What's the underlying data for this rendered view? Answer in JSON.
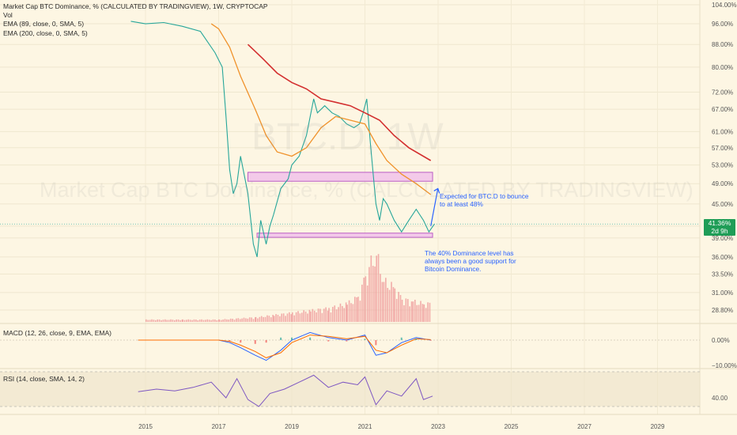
{
  "legend": {
    "title": "Market Cap BTC Dominance, % (CALCULATED BY TRADINGVIEW), 1W, CRYPTOCAP",
    "vol": "Vol",
    "ema89": "EMA (89, close, 0, SMA, 5)",
    "ema200": "EMA (200, close, 0, SMA, 5)"
  },
  "watermark": {
    "symbol": "BTC.D, 1W",
    "name": "Market Cap BTC Dominance, % (CALCULATED BY TRADINGVIEW)"
  },
  "price_badge": {
    "value": "41.36%",
    "countdown": "2d 9h"
  },
  "annotations": {
    "bounce": [
      "Expected for BTC.D to bounce",
      "to at least 48%"
    ],
    "support": [
      "The 40% Dominance level has",
      "always been a good support for",
      "Bitcoin Dominance."
    ]
  },
  "macd_legend": "MACD (12, 26, close, 9, EMA, EMA)",
  "rsi_legend": "RSI (14, close, SMA, 14, 2)",
  "colors": {
    "background": "#fdf6e3",
    "candle": "#26a69a",
    "ema89": "#f0922b",
    "ema200": "#d32f2f",
    "zone_fill": "#f3c6ea",
    "zone_stroke": "#b44ec2",
    "annotation": "#2962ff",
    "volume": "#ef9a9a",
    "macd_line": "#2962ff",
    "signal_line": "#ff6d00",
    "rsi_line": "#7e57c2",
    "price_badge": "#1f9d57"
  },
  "chart_data": [
    {
      "type": "line",
      "pane": "price",
      "title": "Market Cap BTC Dominance, % (CALCULATED BY TRADINGVIEW), 1W, CRYPTOCAP",
      "scale": "log",
      "y_ticks": [
        "104.00%",
        "96.00%",
        "88.00%",
        "80.00%",
        "72.00%",
        "67.00%",
        "61.00%",
        "57.00%",
        "53.00%",
        "49.00%",
        "45.00%",
        "41.00%",
        "39.00%",
        "36.00%",
        "33.50%",
        "31.00%",
        "28.80%"
      ],
      "x_ticks": [
        "2015",
        "2017",
        "2019",
        "2021",
        "2023",
        "2025",
        "2027",
        "2029"
      ],
      "series": [
        {
          "name": "BTC.D",
          "x": [
            2014.6,
            2015.0,
            2015.5,
            2016.0,
            2016.5,
            2016.9,
            2017.1,
            2017.2,
            2017.3,
            2017.4,
            2017.5,
            2017.6,
            2017.8,
            2017.95,
            2018.05,
            2018.15,
            2018.3,
            2018.4,
            2018.5,
            2018.7,
            2018.9,
            2019.0,
            2019.2,
            2019.4,
            2019.6,
            2019.7,
            2019.9,
            2020.1,
            2020.3,
            2020.5,
            2020.7,
            2020.85,
            2020.95,
            2021.05,
            2021.15,
            2021.3,
            2021.4,
            2021.5,
            2021.6,
            2021.8,
            2022.0,
            2022.2,
            2022.4,
            2022.6,
            2022.75,
            2022.9
          ],
          "y": [
            97,
            96,
            96.5,
            95,
            93,
            85,
            80,
            65,
            52,
            47,
            49,
            55,
            47,
            38,
            36,
            42,
            38,
            41,
            43,
            48,
            50,
            53,
            55,
            60,
            70,
            66,
            68,
            66,
            65,
            63,
            62,
            63,
            66,
            70,
            58,
            45,
            42,
            46,
            45,
            42,
            40,
            42,
            44,
            42,
            40,
            41.36
          ]
        },
        {
          "name": "EMA (89, close, 0, SMA, 5)",
          "x": [
            2016.8,
            2017.0,
            2017.3,
            2017.6,
            2018.0,
            2018.3,
            2018.6,
            2019.0,
            2019.4,
            2019.8,
            2020.2,
            2020.6,
            2021.0,
            2021.3,
            2021.6,
            2022.0,
            2022.4,
            2022.8
          ],
          "y": [
            96,
            94,
            87,
            77,
            67,
            60,
            56,
            55,
            57,
            62,
            65,
            64,
            63,
            58,
            54,
            51,
            49,
            46.8
          ]
        },
        {
          "name": "EMA (200, close, 0, SMA, 5)",
          "x": [
            2017.8,
            2018.2,
            2018.6,
            2019.0,
            2019.4,
            2019.8,
            2020.2,
            2020.6,
            2021.0,
            2021.4,
            2021.8,
            2022.2,
            2022.8
          ],
          "y": [
            88,
            83,
            78,
            75,
            73,
            70,
            69,
            68,
            66,
            64,
            60,
            57,
            54
          ]
        }
      ],
      "zones": [
        {
          "from": 49.5,
          "to": 51.4,
          "x_start": 2017.8,
          "x_end": 2022.85
        },
        {
          "from": 39.1,
          "to": 39.8,
          "x_start": 2018.05,
          "x_end": 2022.85
        }
      ],
      "arrow": {
        "x": 2022.8,
        "from": 41.0,
        "to": 48.0
      }
    },
    {
      "type": "bar",
      "pane": "volume",
      "series": [
        {
          "name": "Vol",
          "x": [
            2015.0,
            2016.0,
            2017.0,
            2018.0,
            2018.5,
            2019.0,
            2019.5,
            2020.0,
            2020.5,
            2020.8,
            2021.0,
            2021.1,
            2021.3,
            2021.5,
            2021.8,
            2022.0,
            2022.3,
            2022.6,
            2022.8
          ],
          "values": [
            1,
            1,
            1,
            2,
            3,
            4,
            5,
            6,
            8,
            11,
            20,
            25,
            30,
            18,
            15,
            10,
            9,
            8,
            8
          ]
        }
      ]
    },
    {
      "type": "line",
      "pane": "macd",
      "title": "MACD (12, 26, close, 9, EMA, EMA)",
      "y_ticks": [
        "0.00%",
        "−10.00%"
      ],
      "series": [
        {
          "name": "MACD",
          "x": [
            2014.8,
            2017.0,
            2017.3,
            2017.6,
            2018.0,
            2018.3,
            2018.7,
            2019.0,
            2019.5,
            2020.0,
            2020.5,
            2021.0,
            2021.3,
            2021.6,
            2022.0,
            2022.4,
            2022.8
          ],
          "values": [
            0,
            0,
            -1,
            -3,
            -6,
            -8,
            -4,
            0,
            3,
            1,
            0,
            2,
            -6,
            -5,
            -1,
            1,
            0
          ]
        },
        {
          "name": "Signal",
          "x": [
            2014.8,
            2017.0,
            2017.3,
            2017.6,
            2018.0,
            2018.3,
            2018.7,
            2019.0,
            2019.5,
            2020.0,
            2020.5,
            2021.0,
            2021.3,
            2021.6,
            2022.0,
            2022.4,
            2022.8
          ],
          "values": [
            0,
            0,
            -0.5,
            -2,
            -4.5,
            -7,
            -5,
            -1,
            2,
            1.5,
            0.5,
            1.5,
            -4,
            -5,
            -2,
            0.5,
            0.2
          ]
        }
      ]
    },
    {
      "type": "line",
      "pane": "rsi",
      "title": "RSI (14, close, SMA, 14, 2)",
      "y_ticks": [
        "40.00"
      ],
      "series": [
        {
          "name": "RSI",
          "x": [
            2014.8,
            2015.3,
            2015.8,
            2016.3,
            2016.8,
            2017.2,
            2017.5,
            2017.8,
            2018.1,
            2018.4,
            2018.8,
            2019.2,
            2019.6,
            2020.0,
            2020.4,
            2020.8,
            2021.0,
            2021.3,
            2021.6,
            2022.0,
            2022.4,
            2022.6,
            2022.85
          ],
          "values": [
            47,
            50,
            48,
            52,
            58,
            40,
            62,
            38,
            30,
            45,
            50,
            58,
            66,
            52,
            58,
            55,
            64,
            32,
            48,
            42,
            62,
            38,
            42
          ]
        }
      ]
    }
  ]
}
